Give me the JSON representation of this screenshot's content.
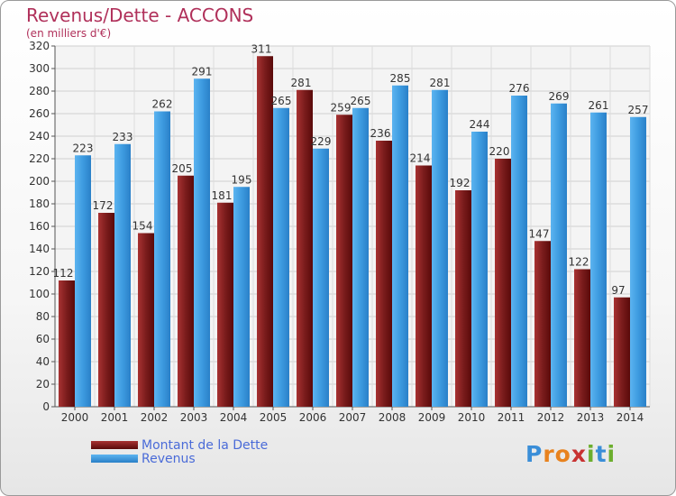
{
  "title": "Revenus/Dette - ACCONS",
  "subtitle": "(en milliers d'€)",
  "logo": {
    "letters": [
      "P",
      "r",
      "o",
      "x",
      "i",
      "t",
      "i"
    ],
    "colors": [
      "#3a8ed8",
      "#e8821e",
      "#e8821e",
      "#c83232",
      "#6cae2e",
      "#3a8ed8",
      "#6cae2e"
    ]
  },
  "chart_data": {
    "type": "bar",
    "categories": [
      "2000",
      "2001",
      "2002",
      "2003",
      "2004",
      "2005",
      "2006",
      "2007",
      "2008",
      "2009",
      "2010",
      "2011",
      "2012",
      "2013",
      "2014"
    ],
    "series": [
      {
        "name": "Montant de la Dette",
        "color": "#7a1818",
        "values": [
          112,
          172,
          154,
          205,
          181,
          311,
          281,
          259,
          236,
          214,
          192,
          220,
          147,
          122,
          97
        ]
      },
      {
        "name": "Revenus",
        "color": "#3d9be0",
        "values": [
          223,
          233,
          262,
          291,
          195,
          265,
          229,
          265,
          285,
          281,
          244,
          276,
          269,
          261,
          257
        ]
      }
    ],
    "ylim": [
      0,
      320
    ],
    "yticks": [
      0,
      20,
      40,
      60,
      80,
      100,
      120,
      140,
      160,
      180,
      200,
      220,
      240,
      260,
      280,
      300,
      320
    ],
    "grid": true,
    "legend": "bottom-left"
  }
}
